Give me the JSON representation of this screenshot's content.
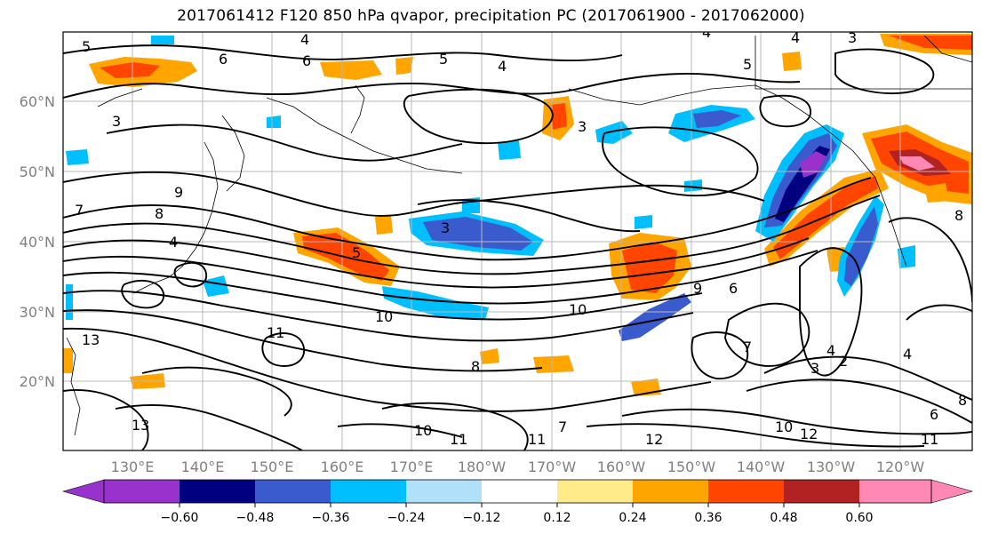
{
  "title": "2017061412 F120 850 hPa qvapor, precipitation PC (2017061900 - 2017062000)",
  "lat_labels": [
    "60°N",
    "50°N",
    "40°N",
    "30°N",
    "20°N"
  ],
  "lon_labels": [
    "130°E",
    "140°E",
    "150°E",
    "160°E",
    "170°E",
    "180°W",
    "170°W",
    "160°W",
    "150°W",
    "140°W",
    "130°W",
    "120°W"
  ],
  "colorbar": {
    "colors": [
      "#9932cc",
      "#000080",
      "#3a5bcd",
      "#00bfff",
      "#b0e0fa",
      "#ffffff",
      "#ffeb8a",
      "#ffa500",
      "#ff4500",
      "#b22222",
      "#ff88b4"
    ],
    "tick_labels": [
      "−0.60",
      "−0.48",
      "−0.36",
      "−0.24",
      "−0.12",
      "0.12",
      "0.24",
      "0.36",
      "0.48",
      "0.60"
    ],
    "extend": "both"
  },
  "contour_labels": [
    {
      "text": "4"
    },
    {
      "text": "6"
    },
    {
      "text": "5"
    },
    {
      "text": "3"
    },
    {
      "text": "4"
    },
    {
      "text": "5"
    },
    {
      "text": "6"
    },
    {
      "text": "5"
    },
    {
      "text": "4"
    },
    {
      "text": "3"
    },
    {
      "text": "4"
    },
    {
      "text": "8"
    },
    {
      "text": "7"
    },
    {
      "text": "4"
    },
    {
      "text": "3"
    },
    {
      "text": "10"
    },
    {
      "text": "11"
    },
    {
      "text": "9"
    },
    {
      "text": "13"
    },
    {
      "text": "13"
    },
    {
      "text": "10"
    },
    {
      "text": "11"
    },
    {
      "text": "11"
    },
    {
      "text": "7"
    },
    {
      "text": "12"
    },
    {
      "text": "8"
    },
    {
      "text": "10"
    },
    {
      "text": "5"
    },
    {
      "text": "6"
    },
    {
      "text": "9"
    },
    {
      "text": "3"
    },
    {
      "text": "4"
    },
    {
      "text": "2"
    },
    {
      "text": "4"
    },
    {
      "text": "6"
    },
    {
      "text": "8"
    },
    {
      "text": "11"
    },
    {
      "text": "12"
    },
    {
      "text": "10"
    },
    {
      "text": "3"
    },
    {
      "text": "7"
    },
    {
      "text": "8"
    }
  ]
}
